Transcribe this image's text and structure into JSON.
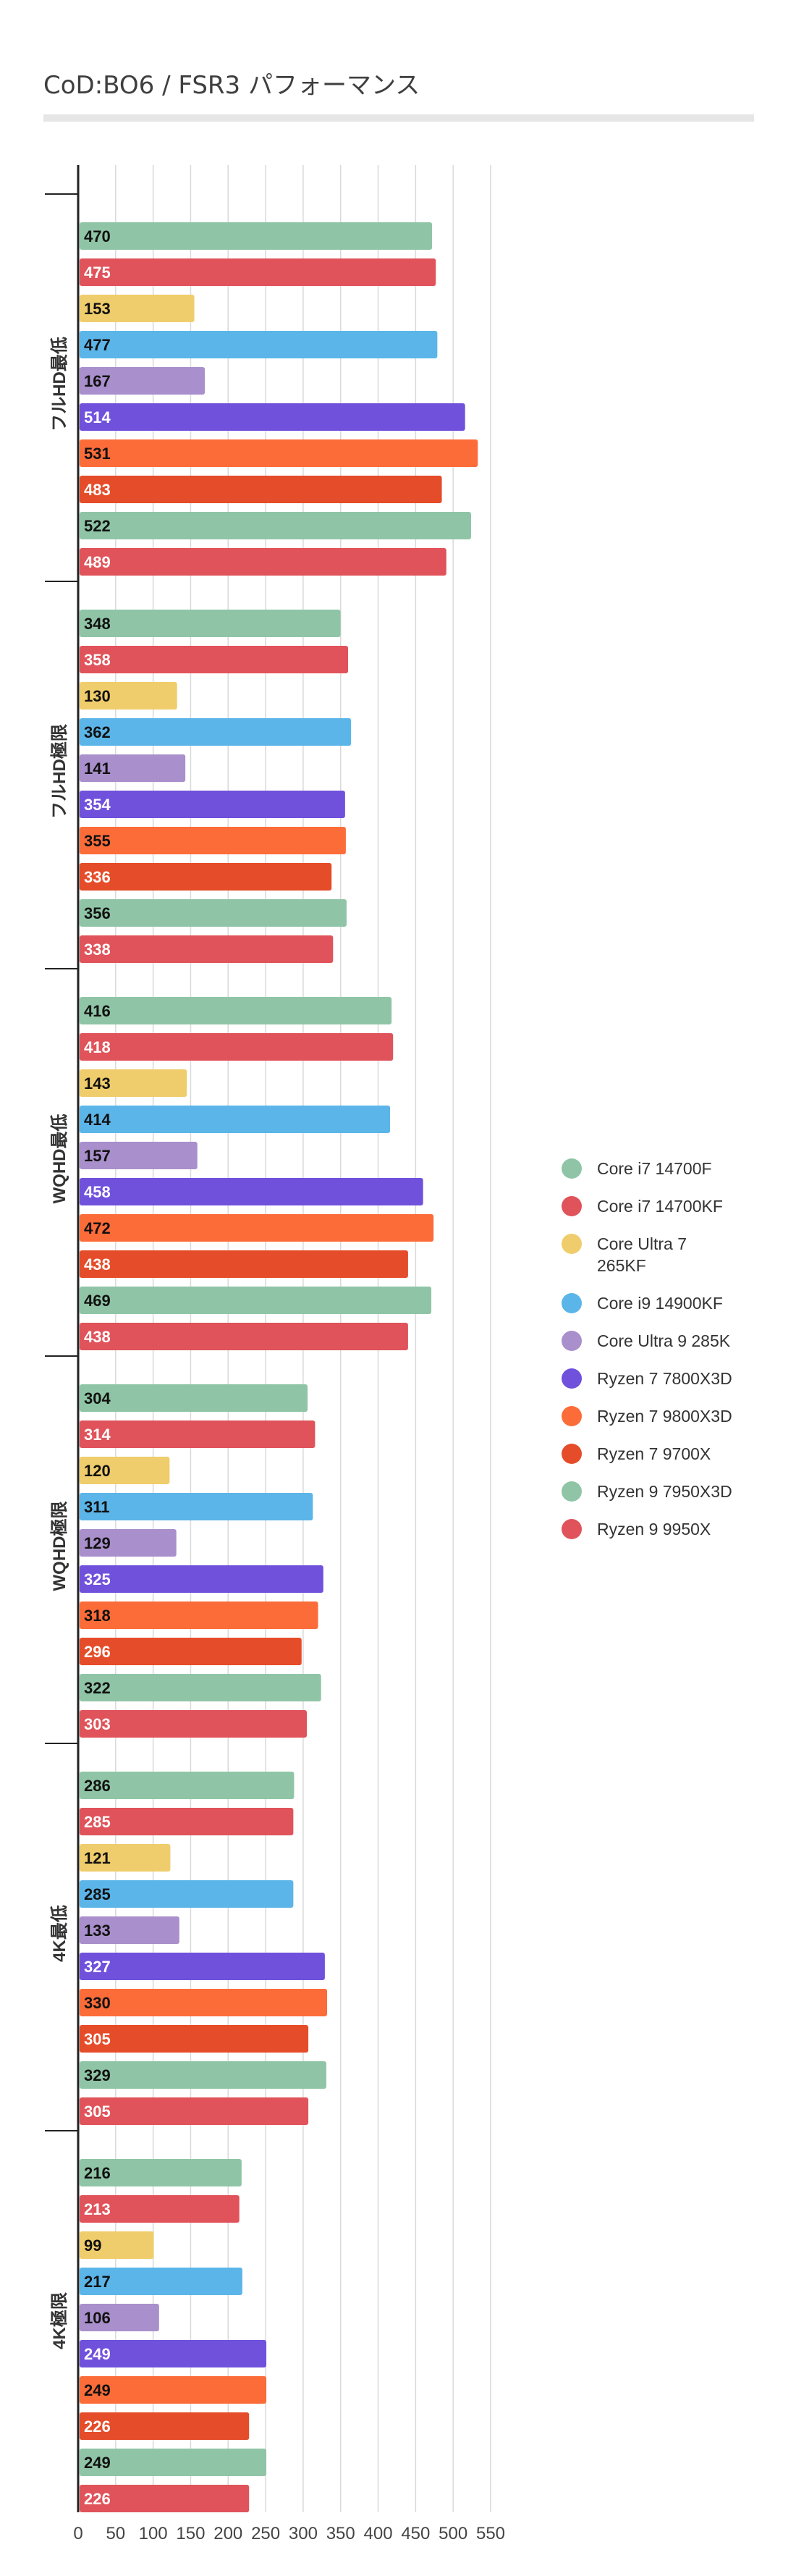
{
  "chart_data": {
    "type": "bar",
    "orientation": "horizontal",
    "title": "CoD:BO6 / FSR3 パフォーマンス",
    "xlabel": "",
    "ylabel": "",
    "xlim": [
      0,
      550
    ],
    "grid": true,
    "legend_position": "right",
    "x_ticks": [
      0,
      50,
      100,
      150,
      200,
      250,
      300,
      350,
      400,
      450,
      500,
      550
    ],
    "categories": [
      "フルHD最低",
      "フルHD極限",
      "WQHD最低",
      "WQHD極限",
      "4K最低",
      "4K極限"
    ],
    "series": [
      {
        "name": "Core i7 14700F",
        "color": "#8fc5a6",
        "label_color": "#111111",
        "values": [
          470,
          348,
          416,
          304,
          286,
          216
        ]
      },
      {
        "name": "Core i7 14700KF",
        "color": "#e0535a",
        "label_color": "#ffffff",
        "values": [
          475,
          358,
          418,
          314,
          285,
          213
        ]
      },
      {
        "name": "Core Ultra 7 265KF",
        "legend_lines": [
          "Core Ultra 7",
          "265KF"
        ],
        "color": "#f0cd6c",
        "label_color": "#111111",
        "values": [
          153,
          130,
          143,
          120,
          121,
          99
        ]
      },
      {
        "name": "Core i9 14900KF",
        "color": "#5bb5e8",
        "label_color": "#111111",
        "values": [
          477,
          362,
          414,
          311,
          285,
          217
        ]
      },
      {
        "name": "Core Ultra 9 285K",
        "color": "#a98fcb",
        "label_color": "#111111",
        "values": [
          167,
          141,
          157,
          129,
          133,
          106
        ]
      },
      {
        "name": "Ryzen 7 7800X3D",
        "color": "#7051dc",
        "label_color": "#ffffff",
        "values": [
          514,
          354,
          458,
          325,
          327,
          249
        ]
      },
      {
        "name": "Ryzen 7 9800X3D",
        "color": "#fc6c39",
        "label_color": "#111111",
        "values": [
          531,
          355,
          472,
          318,
          330,
          249
        ]
      },
      {
        "name": "Ryzen 7 9700X",
        "color": "#e54c29",
        "label_color": "#ffffff",
        "values": [
          483,
          336,
          438,
          296,
          305,
          226
        ]
      },
      {
        "name": "Ryzen 9 7950X3D",
        "color": "#8fc5a6",
        "label_color": "#111111",
        "values": [
          522,
          356,
          469,
          322,
          329,
          249
        ]
      },
      {
        "name": "Ryzen 9 9950X",
        "color": "#e0535a",
        "label_color": "#ffffff",
        "values": [
          489,
          338,
          438,
          303,
          305,
          226
        ]
      }
    ]
  }
}
